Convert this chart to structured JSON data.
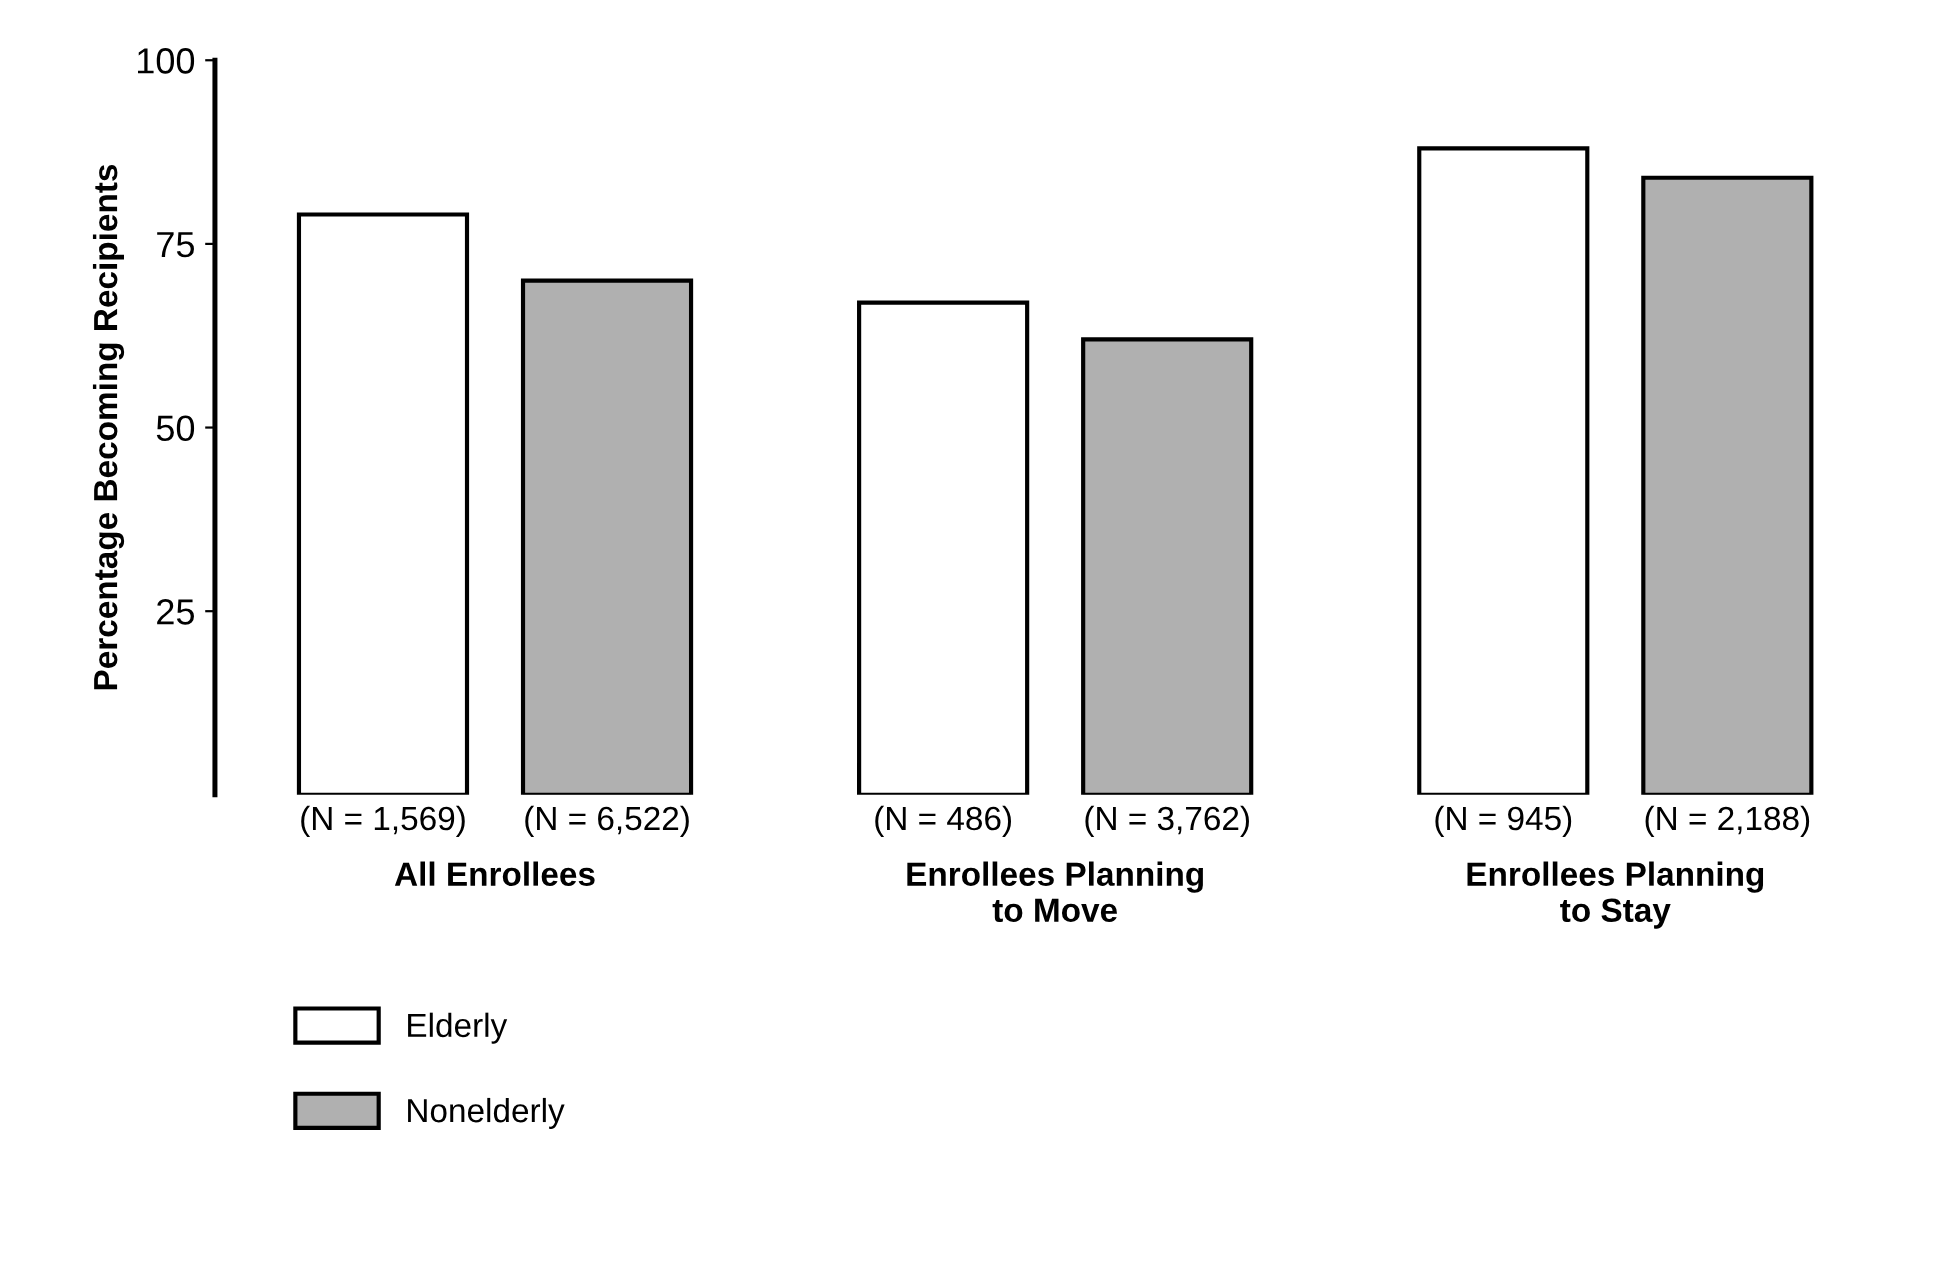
{
  "chart_data": {
    "type": "bar",
    "ylabel": "Percentage Becoming Recipients",
    "categories": [
      "All Enrollees",
      "Enrollees Planning\nto Move",
      "Enrollees Planning\nto Stay"
    ],
    "series": [
      {
        "name": "Elderly",
        "color": "#ffffff",
        "values": [
          79,
          67,
          88
        ]
      },
      {
        "name": "Nonelderly",
        "color": "#b0b0b0",
        "values": [
          70,
          62,
          84
        ]
      }
    ],
    "ylim": [
      0,
      100
    ],
    "yticks": [
      25,
      50,
      75,
      100
    ],
    "grid": false,
    "legend": "bottom left",
    "annotations": [
      "(N = 1,569)",
      "(N = 6,522)",
      "(N = 486)",
      "(N = 3,762)",
      "(N = 945)",
      "(N = 2,188)"
    ]
  }
}
